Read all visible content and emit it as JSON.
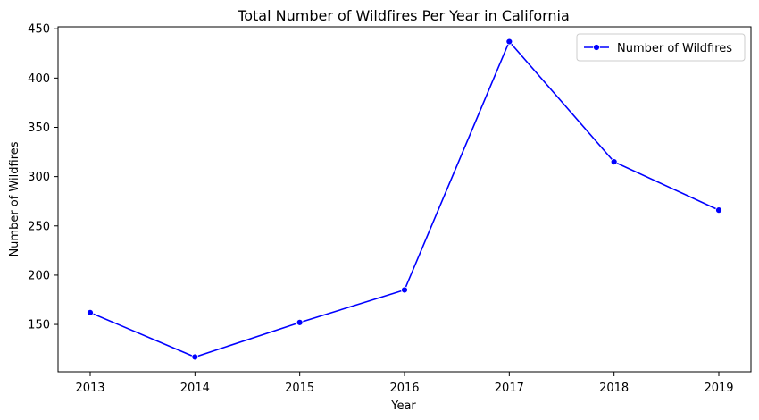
{
  "chart_data": {
    "type": "line",
    "title": "Total Number of Wildfires Per Year in California",
    "xlabel": "Year",
    "ylabel": "Number of Wildfires",
    "x": [
      "2013",
      "2014",
      "2015",
      "2016",
      "2017",
      "2018",
      "2019"
    ],
    "series": [
      {
        "name": "Number of Wildfires",
        "color": "#0000ff",
        "marker": "circle",
        "values": [
          162,
          117,
          152,
          185,
          437,
          315,
          266
        ]
      }
    ],
    "yticks": [
      150,
      200,
      250,
      300,
      350,
      400,
      450
    ],
    "ylim": [
      102,
      452
    ],
    "grid": false,
    "legend_position": "top-right"
  }
}
